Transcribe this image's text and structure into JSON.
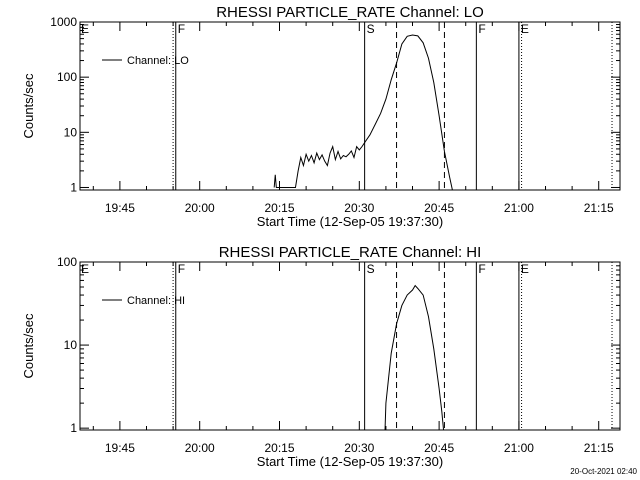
{
  "footer": {
    "timestamp": "20-Oct-2021 02:40"
  },
  "chart_data": [
    {
      "type": "line",
      "title": "RHESSI PARTICLE_RATE Channel: LO",
      "xlabel": "Start Time (12-Sep-05 19:37:30)",
      "ylabel": "Counts/sec",
      "yscale": "log",
      "ylim": [
        0.9,
        1000
      ],
      "xlim": [
        "19:37:30",
        "21:19:00"
      ],
      "xticks": [
        "19:45",
        "20:00",
        "20:15",
        "20:30",
        "20:45",
        "21:00",
        "21:15"
      ],
      "yticks": [
        "1",
        "10",
        "100",
        "1000"
      ],
      "legend": {
        "position": "top-left",
        "entries": [
          "Channel: LO"
        ]
      },
      "flags": [
        {
          "label": "F",
          "time": "19:55:30",
          "style": "solid"
        },
        {
          "label": "S",
          "time": "20:31:00",
          "style": "solid"
        },
        {
          "label": "F",
          "time": "20:52:00",
          "style": "solid"
        },
        {
          "label": "E",
          "time": "21:00:00",
          "style": "solid"
        }
      ],
      "markers": [
        {
          "time": "19:55:00",
          "style": "dotted"
        },
        {
          "time": "20:37:00",
          "style": "dashed"
        },
        {
          "time": "20:46:00",
          "style": "dashed"
        },
        {
          "time": "21:00:30",
          "style": "dotted"
        },
        {
          "time": "21:17:30",
          "style": "dotted"
        }
      ],
      "edge_flags": [
        {
          "label": "E",
          "time": "19:37:30"
        }
      ],
      "series": [
        {
          "name": "Channel: LO",
          "points": [
            [
              "20:14:00",
              1
            ],
            [
              "20:14:12",
              1.7
            ],
            [
              "20:14:24",
              1
            ],
            [
              "20:18:00",
              1
            ],
            [
              "20:18:30",
              2.0
            ],
            [
              "20:19:00",
              3.5
            ],
            [
              "20:19:30",
              2.5
            ],
            [
              "20:20:00",
              4.0
            ],
            [
              "20:20:30",
              3.0
            ],
            [
              "20:21:00",
              3.8
            ],
            [
              "20:21:30",
              2.8
            ],
            [
              "20:22:00",
              4.2
            ],
            [
              "20:22:30",
              3.2
            ],
            [
              "20:23:00",
              3.9
            ],
            [
              "20:23:30",
              3.0
            ],
            [
              "20:24:00",
              2.5
            ],
            [
              "20:24:30",
              4.2
            ],
            [
              "20:25:00",
              5.5
            ],
            [
              "20:25:30",
              3.2
            ],
            [
              "20:26:00",
              4.5
            ],
            [
              "20:26:30",
              3.3
            ],
            [
              "20:27:00",
              3.8
            ],
            [
              "20:27:30",
              3.6
            ],
            [
              "20:28:00",
              4.0
            ],
            [
              "20:28:30",
              4.6
            ],
            [
              "20:29:00",
              3.5
            ],
            [
              "20:29:30",
              5.5
            ],
            [
              "20:30:00",
              4.8
            ],
            [
              "20:30:30",
              5.5
            ],
            [
              "20:31:00",
              6.5
            ],
            [
              "20:32:00",
              9
            ],
            [
              "20:33:00",
              14
            ],
            [
              "20:34:00",
              22
            ],
            [
              "20:35:00",
              40
            ],
            [
              "20:36:00",
              90
            ],
            [
              "20:37:00",
              180
            ],
            [
              "20:38:00",
              400
            ],
            [
              "20:39:00",
              550
            ],
            [
              "20:40:00",
              580
            ],
            [
              "20:41:00",
              560
            ],
            [
              "20:42:00",
              420
            ],
            [
              "20:43:00",
              220
            ],
            [
              "20:44:00",
              80
            ],
            [
              "20:45:00",
              20
            ],
            [
              "20:46:00",
              4.5
            ],
            [
              "20:47:00",
              1.5
            ],
            [
              "20:47:30",
              0.9
            ]
          ]
        }
      ]
    },
    {
      "type": "line",
      "title": "RHESSI PARTICLE_RATE Channel: HI",
      "xlabel": "Start Time (12-Sep-05 19:37:30)",
      "ylabel": "Counts/sec",
      "yscale": "log",
      "ylim": [
        0.95,
        100
      ],
      "xlim": [
        "19:37:30",
        "21:19:00"
      ],
      "xticks": [
        "19:45",
        "20:00",
        "20:15",
        "20:30",
        "20:45",
        "21:00",
        "21:15"
      ],
      "yticks": [
        "1",
        "10",
        "100"
      ],
      "legend": {
        "position": "top-left",
        "entries": [
          "Channel: HI"
        ]
      },
      "flags": [
        {
          "label": "F",
          "time": "19:55:30",
          "style": "solid"
        },
        {
          "label": "S",
          "time": "20:31:00",
          "style": "solid"
        },
        {
          "label": "F",
          "time": "20:52:00",
          "style": "solid"
        },
        {
          "label": "E",
          "time": "21:00:00",
          "style": "solid"
        }
      ],
      "markers": [
        {
          "time": "19:55:00",
          "style": "dotted"
        },
        {
          "time": "20:37:00",
          "style": "dashed"
        },
        {
          "time": "20:46:00",
          "style": "dashed"
        },
        {
          "time": "21:00:30",
          "style": "dotted"
        },
        {
          "time": "21:17:30",
          "style": "dotted"
        }
      ],
      "edge_flags": [
        {
          "label": "E",
          "time": "19:37:30"
        }
      ],
      "series": [
        {
          "name": "Channel: HI",
          "points": [
            [
              "20:34:50",
              0.95
            ],
            [
              "20:35:00",
              2
            ],
            [
              "20:36:00",
              8
            ],
            [
              "20:37:00",
              18
            ],
            [
              "20:38:00",
              30
            ],
            [
              "20:39:00",
              40
            ],
            [
              "20:40:00",
              46
            ],
            [
              "20:40:30",
              52
            ],
            [
              "20:41:00",
              48
            ],
            [
              "20:42:00",
              40
            ],
            [
              "20:43:00",
              22
            ],
            [
              "20:44:00",
              9
            ],
            [
              "20:45:00",
              3
            ],
            [
              "20:45:30",
              1.6
            ],
            [
              "20:45:50",
              0.95
            ]
          ]
        }
      ]
    }
  ]
}
